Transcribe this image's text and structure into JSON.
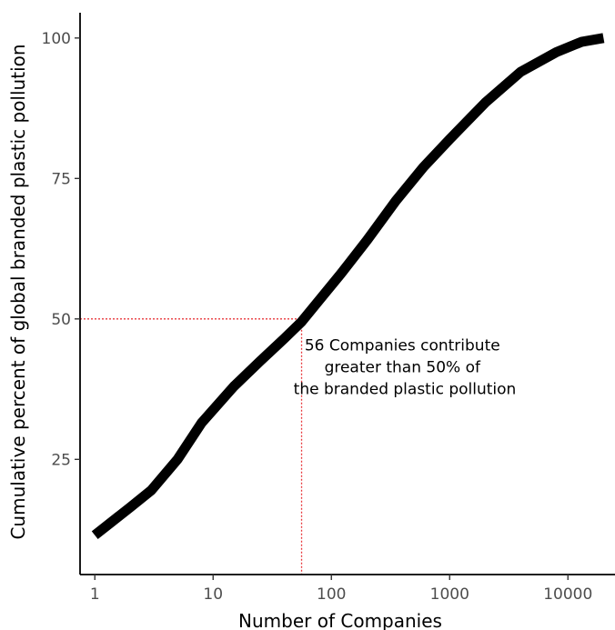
{
  "chart_data": {
    "type": "line",
    "xscale": "log10",
    "xlabel": "Number of Companies",
    "ylabel": "Cumulative percent of global branded plastic pollution",
    "xlim": [
      0.75,
      25000
    ],
    "ylim": [
      4.5,
      104.5
    ],
    "x_ticks": [
      {
        "value": 1,
        "label": "1"
      },
      {
        "value": 10,
        "label": "10"
      },
      {
        "value": 100,
        "label": "100"
      },
      {
        "value": 1000,
        "label": "1000"
      },
      {
        "value": 10000,
        "label": "10000"
      }
    ],
    "y_ticks": [
      {
        "value": 25,
        "label": "25"
      },
      {
        "value": 50,
        "label": "50"
      },
      {
        "value": 75,
        "label": "75"
      },
      {
        "value": 100,
        "label": "100"
      }
    ],
    "grid": false,
    "series": [
      {
        "color": "#000000",
        "points": [
          {
            "x": 1,
            "y": 11.5
          },
          {
            "x": 2,
            "y": 16.5
          },
          {
            "x": 3,
            "y": 19.5
          },
          {
            "x": 5,
            "y": 25
          },
          {
            "x": 8,
            "y": 31.5
          },
          {
            "x": 15,
            "y": 38
          },
          {
            "x": 25,
            "y": 42.5
          },
          {
            "x": 40,
            "y": 46.5
          },
          {
            "x": 56,
            "y": 49.5
          },
          {
            "x": 80,
            "y": 53.5
          },
          {
            "x": 120,
            "y": 58
          },
          {
            "x": 200,
            "y": 64
          },
          {
            "x": 350,
            "y": 71
          },
          {
            "x": 600,
            "y": 77
          },
          {
            "x": 1000,
            "y": 82
          },
          {
            "x": 2000,
            "y": 88.5
          },
          {
            "x": 4000,
            "y": 94
          },
          {
            "x": 8000,
            "y": 97.5
          },
          {
            "x": 13000,
            "y": 99.3
          },
          {
            "x": 20000,
            "y": 100
          }
        ]
      }
    ],
    "reference_lines": {
      "color": "#e8383d",
      "x": 56,
      "y": 50
    },
    "annotation": {
      "lines": [
        "56 Companies contribute",
        "greater than 50% of",
        "the branded plastic pollution"
      ],
      "x": 350,
      "y": 39.5
    }
  }
}
